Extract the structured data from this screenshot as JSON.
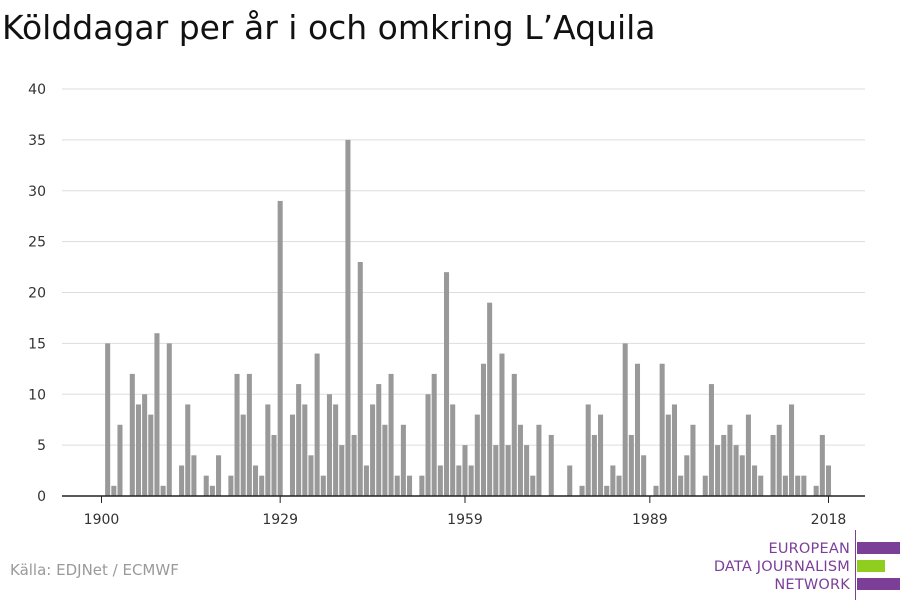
{
  "title": "Kölddagar per år i och omkring L’Aquila",
  "source": "Källa: EDJNet / ECMWF",
  "logo": {
    "line1": "EUROPEAN",
    "line2": "DATA JOURNALISM",
    "line3": "NETWORK",
    "colors": {
      "purple": "#7b3f98",
      "green": "#8fce1e"
    }
  },
  "chart_data": {
    "type": "bar",
    "title": "Kölddagar per år i och omkring L’Aquila",
    "xlabel": "",
    "ylabel": "",
    "x_start": 1900,
    "x_end": 2018,
    "x_tick_labels": [
      "1900",
      "1929",
      "1959",
      "1989",
      "2018"
    ],
    "x_tick_values": [
      1900,
      1929,
      1959,
      1989,
      2018
    ],
    "y_ticks": [
      0,
      5,
      10,
      15,
      20,
      25,
      30,
      35,
      40
    ],
    "ylim": [
      0,
      40
    ],
    "grid": true,
    "bar_color": "#999999",
    "values": [
      0,
      15,
      1,
      7,
      0,
      12,
      9,
      10,
      8,
      16,
      1,
      15,
      0,
      3,
      9,
      4,
      0,
      2,
      1,
      4,
      0,
      2,
      12,
      8,
      12,
      3,
      2,
      9,
      6,
      29,
      0,
      8,
      11,
      9,
      4,
      14,
      2,
      10,
      9,
      5,
      35,
      6,
      23,
      3,
      9,
      11,
      7,
      12,
      2,
      7,
      2,
      0,
      2,
      10,
      12,
      3,
      22,
      9,
      3,
      5,
      3,
      8,
      13,
      19,
      5,
      14,
      5,
      12,
      7,
      5,
      2,
      7,
      0,
      6,
      0,
      0,
      3,
      0,
      1,
      9,
      6,
      8,
      1,
      3,
      2,
      15,
      6,
      13,
      4,
      0,
      1,
      13,
      8,
      9,
      2,
      4,
      7,
      0,
      2,
      11,
      5,
      6,
      7,
      5,
      4,
      8,
      3,
      2,
      0,
      6,
      7,
      2,
      9,
      2,
      2,
      0,
      1,
      6,
      3
    ]
  }
}
